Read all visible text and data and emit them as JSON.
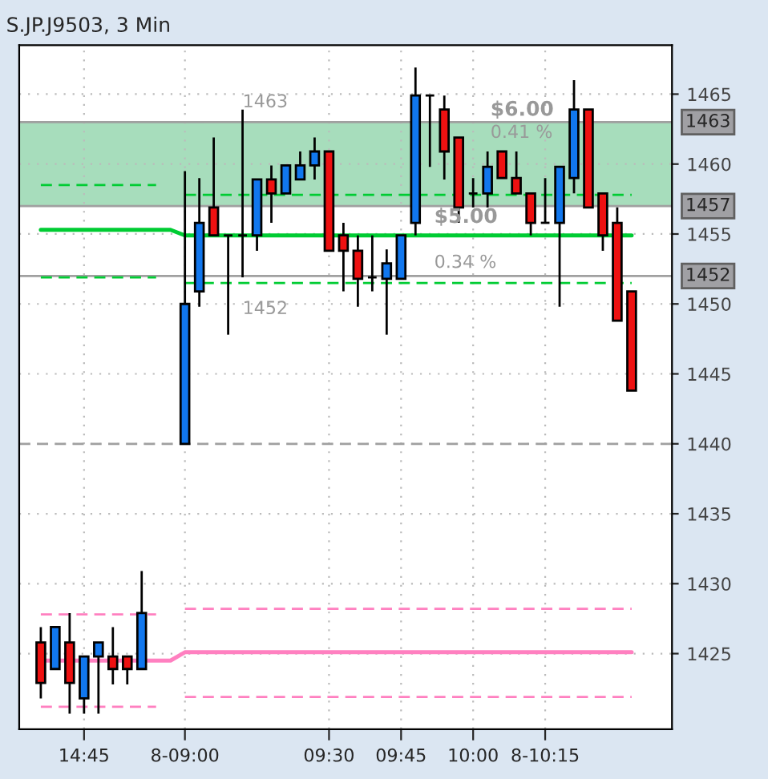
{
  "chart_data": {
    "type": "candlestick",
    "title": "S.JP.J9503, 3 Min",
    "categories": [
      null,
      null,
      null,
      "14:45",
      null,
      null,
      null,
      null,
      null,
      null,
      "8-09:00",
      null,
      null,
      null,
      null,
      null,
      null,
      null,
      null,
      null,
      "09:30",
      null,
      null,
      null,
      null,
      "09:45",
      null,
      null,
      null,
      null,
      "10:00",
      null,
      null,
      null,
      null,
      "8-10:15",
      null,
      null,
      null,
      null,
      null,
      null
    ],
    "ohlc": [
      [
        1425.8,
        1426.9,
        1421.8,
        1422.9
      ],
      [
        1423.9,
        1426.9,
        1423.9,
        1426.9
      ],
      [
        1425.8,
        1427.9,
        1420.7,
        1422.9
      ],
      [
        1421.8,
        1424.8,
        1420.7,
        1424.8
      ],
      [
        1424.8,
        1425.8,
        1420.7,
        1425.8
      ],
      [
        1424.8,
        1426.9,
        1422.8,
        1423.9
      ],
      [
        1424.8,
        1424.8,
        1422.8,
        1423.9
      ],
      [
        1423.9,
        1430.9,
        1423.9,
        1427.9
      ],
      null,
      null,
      [
        1440,
        1459.5,
        1440,
        1450
      ],
      [
        1450.9,
        1459,
        1449.8,
        1455.8
      ],
      [
        1456.9,
        1461.9,
        1454.9,
        1454.9
      ],
      [
        1454.9,
        1454.9,
        1447.8,
        1454.9
      ],
      [
        1454.9,
        1463.9,
        1451.9,
        1454.9
      ],
      [
        1454.9,
        1458.9,
        1453.8,
        1458.9
      ],
      [
        1458.9,
        1459.9,
        1455.8,
        1457.9
      ],
      [
        1457.9,
        1459.9,
        1457.9,
        1459.9
      ],
      [
        1458.9,
        1460.9,
        1458.9,
        1459.9
      ],
      [
        1459.9,
        1461.9,
        1458.9,
        1460.9
      ],
      [
        1460.9,
        1460.9,
        1453.8,
        1453.8
      ],
      [
        1454.9,
        1455.8,
        1450.9,
        1453.8
      ],
      [
        1453.8,
        1454.9,
        1449.8,
        1451.8
      ],
      [
        1451.9,
        1454.9,
        1450.9,
        1451.9
      ],
      [
        1451.8,
        1453.9,
        1447.8,
        1452.9
      ],
      [
        1451.8,
        1454.9,
        1451.8,
        1454.9
      ],
      [
        1455.8,
        1466.9,
        1454.9,
        1464.9
      ],
      [
        1464.9,
        1464.9,
        1459.8,
        1464.9
      ],
      [
        1463.9,
        1464.9,
        1458.9,
        1460.9
      ],
      [
        1461.9,
        1461.9,
        1455.8,
        1456.9
      ],
      [
        1457.9,
        1459,
        1456.9,
        1457.9
      ],
      [
        1457.9,
        1460.9,
        1456.9,
        1459.8
      ],
      [
        1460.9,
        1460.9,
        1459,
        1459
      ],
      [
        1459,
        1460.9,
        1457.9,
        1457.9
      ],
      [
        1457.9,
        1457.9,
        1454.9,
        1455.8
      ],
      [
        1455.8,
        1459,
        1455.8,
        1455.8
      ],
      [
        1455.8,
        1459.8,
        1449.8,
        1459.8
      ],
      [
        1459,
        1466,
        1457.9,
        1463.9
      ],
      [
        1463.9,
        1463.9,
        1456.9,
        1456.9
      ],
      [
        1457.9,
        1457.9,
        1453.8,
        1454.9
      ],
      [
        1455.8,
        1456.9,
        1448.8,
        1448.8
      ],
      [
        1450.9,
        1450.9,
        1443.8,
        1443.8
      ]
    ],
    "colors": [
      "#ee1111",
      "#1177ee",
      "#ee1111",
      "#1177ee",
      "#1177ee",
      "#ee1111",
      "#ee1111",
      "#1177ee",
      null,
      null,
      "#1177ee",
      "#1177ee",
      "#ee1111",
      "#000000",
      "#000000",
      "#1177ee",
      "#ee1111",
      "#1177ee",
      "#1177ee",
      "#1177ee",
      "#ee1111",
      "#ee1111",
      "#ee1111",
      "#000000",
      "#1177ee",
      "#1177ee",
      "#1177ee",
      "#000000",
      "#ee1111",
      "#ee1111",
      "#000000",
      "#1177ee",
      "#ee1111",
      "#ee1111",
      "#ee1111",
      "#000000",
      "#1177ee",
      "#1177ee",
      "#ee1111",
      "#ee1111",
      "#ee1111",
      "#ee1111"
    ],
    "series": [
      {
        "type": "line",
        "color": "#00cc33",
        "line_style": "solid",
        "values": [
          1455.3,
          1455.3,
          1455.3,
          1455.3,
          1455.3,
          1455.3,
          1455.3,
          1455.3,
          1455.3,
          1455.3,
          1454.9,
          1454.9,
          1454.9,
          1454.9,
          1454.9,
          1454.9,
          1454.9,
          1454.9,
          1454.9,
          1454.9,
          1454.9,
          1454.9,
          1454.9,
          1454.9,
          1454.9,
          1454.9,
          1454.9,
          1454.9,
          1454.9,
          1454.9,
          1454.9,
          1454.9,
          1454.9,
          1454.9,
          1454.9,
          1454.9,
          1454.9,
          1454.9,
          1454.9,
          1454.9,
          1454.9,
          1454.9
        ]
      },
      {
        "type": "line",
        "color": "#00cc33",
        "line_style": "dashed",
        "values": [
          1458.5,
          1458.5,
          1458.5,
          1458.5,
          1458.5,
          1458.5,
          1458.5,
          1458.5,
          1458.5,
          null,
          1457.8,
          1457.8,
          1457.8,
          1457.8,
          1457.8,
          1457.8,
          1457.8,
          1457.8,
          1457.8,
          1457.8,
          1457.8,
          1457.8,
          1457.8,
          1457.8,
          1457.8,
          1457.8,
          1457.8,
          1457.8,
          1457.8,
          1457.8,
          1457.8,
          1457.8,
          1457.8,
          1457.8,
          1457.8,
          1457.8,
          1457.8,
          1457.8,
          1457.8,
          1457.8,
          1457.8,
          1457.8
        ]
      },
      {
        "type": "line",
        "color": "#00cc33",
        "line_style": "dashed",
        "values": [
          1451.9,
          1451.9,
          1451.9,
          1451.9,
          1451.9,
          1451.9,
          1451.9,
          1451.9,
          1451.9,
          null,
          1451.5,
          1451.5,
          1451.5,
          1451.5,
          1451.5,
          1451.5,
          1451.5,
          1451.5,
          1451.5,
          1451.5,
          1451.5,
          1451.5,
          1451.5,
          1451.5,
          1451.5,
          1451.5,
          1451.5,
          1451.5,
          1451.5,
          1451.5,
          1451.5,
          1451.5,
          1451.5,
          1451.5,
          1451.5,
          1451.5,
          1451.5,
          1451.5,
          1451.5,
          1451.5,
          1451.5,
          1451.5
        ]
      },
      {
        "type": "line",
        "color": "#ff80c0",
        "line_style": "solid",
        "values": [
          1424.5,
          1424.5,
          1424.5,
          1424.5,
          1424.5,
          1424.5,
          1424.5,
          1424.5,
          1424.5,
          1424.5,
          1425.1,
          1425.1,
          1425.1,
          1425.1,
          1425.1,
          1425.1,
          1425.1,
          1425.1,
          1425.1,
          1425.1,
          1425.1,
          1425.1,
          1425.1,
          1425.1,
          1425.1,
          1425.1,
          1425.1,
          1425.1,
          1425.1,
          1425.1,
          1425.1,
          1425.1,
          1425.1,
          1425.1,
          1425.1,
          1425.1,
          1425.1,
          1425.1,
          1425.1,
          1425.1,
          1425.1,
          1425.1
        ]
      },
      {
        "type": "line",
        "color": "#ff80c0",
        "line_style": "dashed",
        "values": [
          1427.8,
          1427.8,
          1427.8,
          1427.8,
          1427.8,
          1427.8,
          1427.8,
          1427.8,
          1427.8,
          null,
          1428.2,
          1428.2,
          1428.2,
          1428.2,
          1428.2,
          1428.2,
          1428.2,
          1428.2,
          1428.2,
          1428.2,
          1428.2,
          1428.2,
          1428.2,
          1428.2,
          1428.2,
          1428.2,
          1428.2,
          1428.2,
          1428.2,
          1428.2,
          1428.2,
          1428.2,
          1428.2,
          1428.2,
          1428.2,
          1428.2,
          1428.2,
          1428.2,
          1428.2,
          1428.2,
          1428.2,
          1428.2
        ]
      },
      {
        "type": "line",
        "color": "#ff80c0",
        "line_style": "dashed",
        "values": [
          1421.2,
          1421.2,
          1421.2,
          1421.2,
          1421.2,
          1421.2,
          1421.2,
          1421.2,
          1421.2,
          null,
          1421.9,
          1421.9,
          1421.9,
          1421.9,
          1421.9,
          1421.9,
          1421.9,
          1421.9,
          1421.9,
          1421.9,
          1421.9,
          1421.9,
          1421.9,
          1421.9,
          1421.9,
          1421.9,
          1421.9,
          1421.9,
          1421.9,
          1421.9,
          1421.9,
          1421.9,
          1421.9,
          1421.9,
          1421.9,
          1421.9,
          1421.9,
          1421.9,
          1421.9,
          1421.9,
          1421.9,
          1421.9
        ]
      }
    ],
    "bands": [
      {
        "axis": "y",
        "from": 1457,
        "to": 1463,
        "color": "#9dd9b5"
      }
    ],
    "ref_lines": [
      {
        "axis": "y",
        "value": 1463,
        "label": "1463",
        "color": "#a0a0a0",
        "line_style": "solid"
      },
      {
        "axis": "y",
        "value": 1457,
        "label": "1457",
        "color": "#a0a0a0",
        "line_style": "solid"
      },
      {
        "axis": "y",
        "value": 1452,
        "label": "1452",
        "color": "#a0a0a0",
        "line_style": "solid"
      },
      {
        "axis": "y",
        "value": 1440,
        "color": "#a0a0a0",
        "line_style": "dashed"
      }
    ],
    "annotations": [
      {
        "text": "1463",
        "y": 1463
      },
      {
        "text": "1452",
        "y": 1452
      },
      {
        "text": "$6.00",
        "y": 1463
      },
      {
        "text": "0.41 %",
        "y": 1463
      },
      {
        "text": "$5.00",
        "y": 1452
      },
      {
        "text": "0.34 %",
        "y": 1452
      }
    ],
    "ylim": [
      1419.6,
      1468.5
    ],
    "yticks": [
      1425,
      1430,
      1435,
      1440,
      1445,
      1450,
      1455,
      1460,
      1465
    ],
    "grid": true
  }
}
